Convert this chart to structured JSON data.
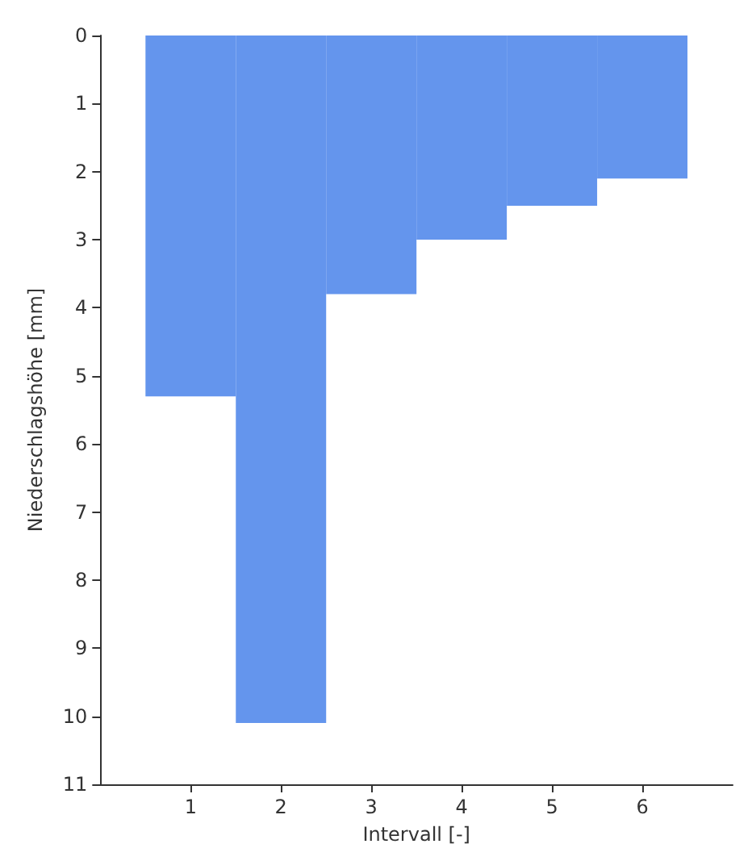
{
  "chart_data": {
    "type": "bar",
    "xlabel": "Intervall [-]",
    "ylabel": "Niederschlagshöhe [mm]",
    "x": [
      1,
      2,
      3,
      4,
      5,
      6
    ],
    "values": [
      5.3,
      10.1,
      3.8,
      3.0,
      2.5,
      2.1
    ],
    "color": "#6495ed",
    "xlim": [
      0,
      7
    ],
    "xticks": [
      1,
      2,
      3,
      4,
      5,
      6
    ],
    "ylim": [
      11,
      0
    ],
    "yticks": [
      0,
      1,
      2,
      3,
      4,
      5,
      6,
      7,
      8,
      9,
      10,
      11
    ],
    "grid": false
  }
}
